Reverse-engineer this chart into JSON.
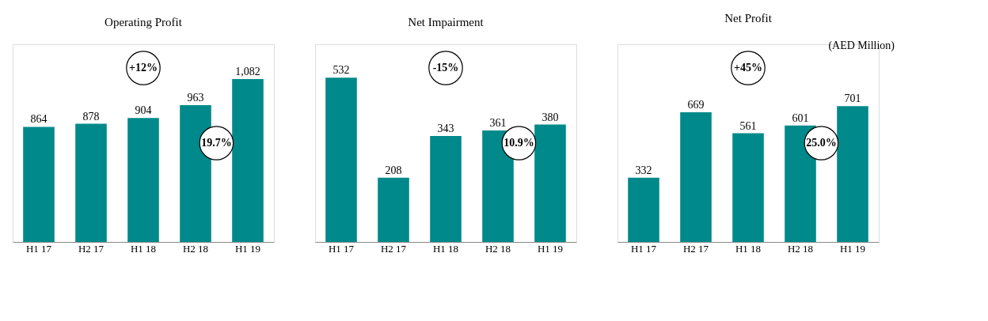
{
  "chart_data": [
    {
      "type": "bar",
      "title": "Operating Profit",
      "categories": [
        "H1 17",
        "H2 17",
        "H1 18",
        "H2 18",
        "H1 19"
      ],
      "values": [
        864,
        878,
        904,
        963,
        1082
      ],
      "value_labels": [
        "864",
        "878",
        "904",
        "963",
        "1,082"
      ],
      "color": "#00898a",
      "ylim": [
        340,
        1240
      ],
      "tick_labels": "x",
      "grid": false,
      "annotations": [
        "+12%",
        "19.7%"
      ]
    },
    {
      "type": "bar",
      "title": "Net Impairment",
      "categories": [
        "H1 17",
        "H2 17",
        "H1 18",
        "H2 18",
        "H1 19"
      ],
      "values": [
        532,
        208,
        343,
        361,
        380
      ],
      "color": "#00898a",
      "ylim": [
        0,
        640
      ],
      "tick_labels": "x",
      "data_labels": true,
      "grid": false,
      "annotations": [
        "-15%",
        "10.9%"
      ]
    },
    {
      "type": "bar",
      "title": "Net Profit",
      "categories": [
        "H1 17",
        "H2 17",
        "H1 18",
        "H2 18",
        "H1 19"
      ],
      "values": [
        332,
        669,
        561,
        601,
        701
      ],
      "color": "#00898a",
      "ylim": [
        0,
        1020
      ],
      "tick_labels": "x",
      "data_labels": true,
      "grid": false,
      "annotations": [
        "+45%",
        "25.0%",
        "(AED Million)"
      ]
    }
  ]
}
